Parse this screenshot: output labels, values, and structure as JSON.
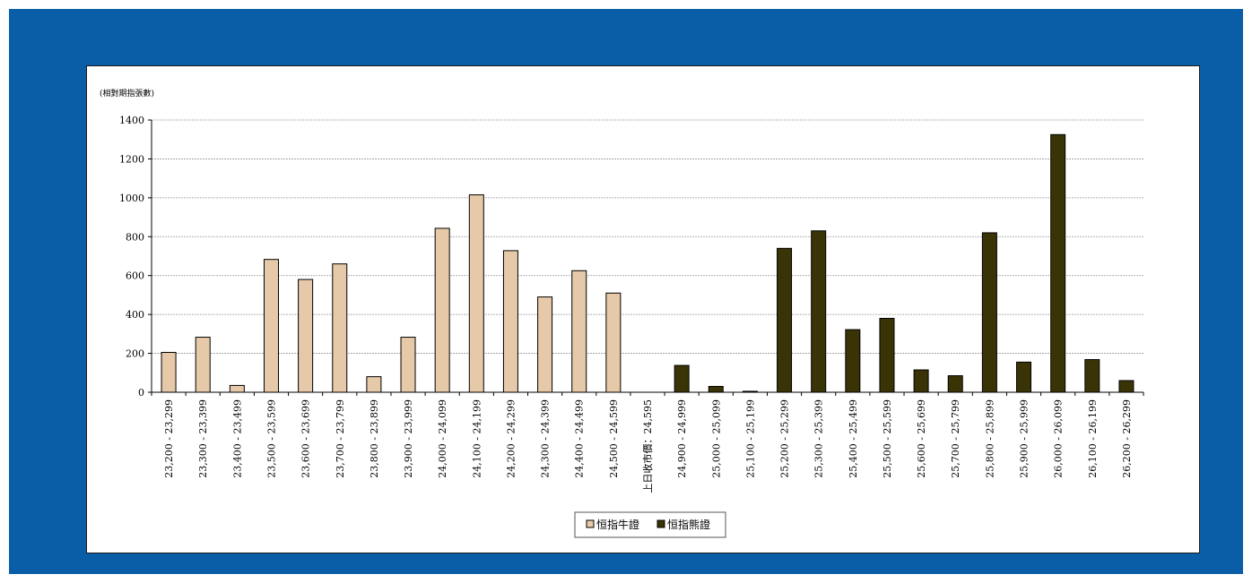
{
  "chart_data": {
    "type": "bar",
    "ylabel": "(相對期指張數)",
    "ylim": [
      0,
      1400
    ],
    "yticks": [
      0,
      200,
      400,
      600,
      800,
      1000,
      1200,
      1400
    ],
    "grid": true,
    "legend_position": "bottom-center",
    "categories": [
      "23,200 - 23,299",
      "23,300 - 23,399",
      "23,400 - 23,499",
      "23,500 - 23,599",
      "23,600 - 23,699",
      "23,700 - 23,799",
      "23,800 - 23,899",
      "23,900 - 23,999",
      "24,000 - 24,099",
      "24,100 - 24,199",
      "24,200 - 24,299",
      "24,300 - 24,399",
      "24,400 - 24,499",
      "24,500 - 24,599",
      "上日收市價：24,595",
      "24,900 - 24,999",
      "25,000 - 25,099",
      "25,100 - 25,199",
      "25,200 - 25,299",
      "25,300 - 25,399",
      "25,400 - 25,499",
      "25,500 - 25,599",
      "25,600 - 25,699",
      "25,700 - 25,799",
      "25,800 - 25,899",
      "25,900 - 25,999",
      "26,000 - 26,099",
      "26,100 - 26,199",
      "26,200 - 26,299"
    ],
    "series": [
      {
        "name": "恒指牛證",
        "color": "#e6c9a8",
        "values": [
          205,
          283,
          35,
          683,
          580,
          660,
          80,
          283,
          843,
          1015,
          728,
          490,
          625,
          510,
          0,
          0,
          0,
          0,
          0,
          0,
          0,
          0,
          0,
          0,
          0,
          0,
          0,
          0,
          0
        ]
      },
      {
        "name": "恒指熊證",
        "color": "#3a3306",
        "values": [
          0,
          0,
          0,
          0,
          0,
          0,
          0,
          0,
          0,
          0,
          0,
          0,
          0,
          0,
          0,
          138,
          30,
          5,
          740,
          830,
          322,
          380,
          115,
          85,
          820,
          155,
          1325,
          168,
          60
        ]
      }
    ]
  }
}
